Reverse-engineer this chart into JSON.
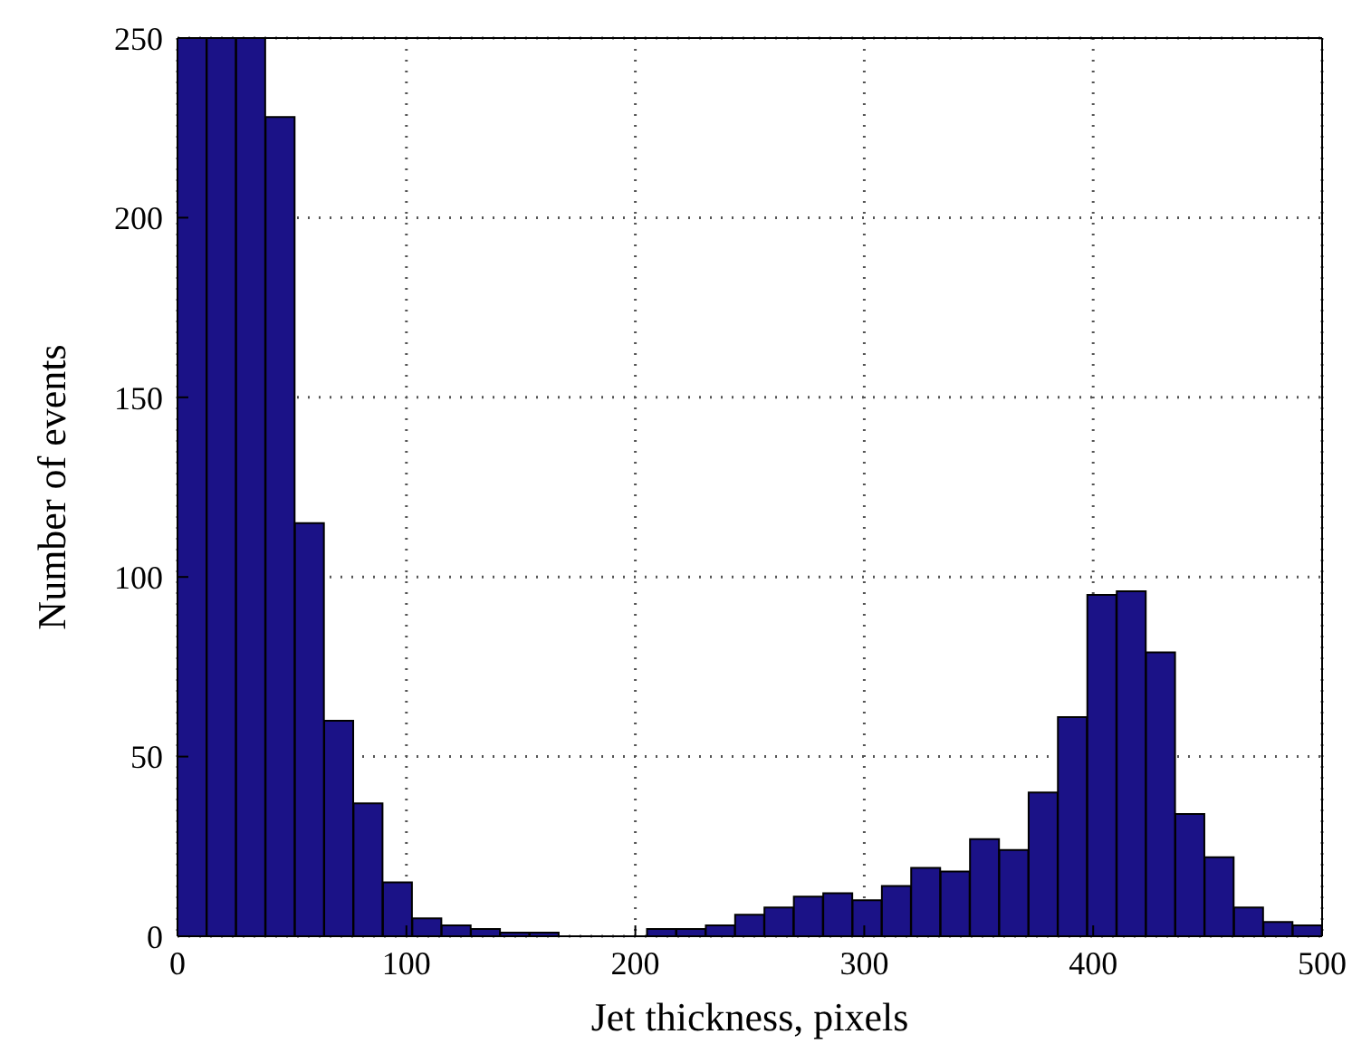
{
  "chart_data": {
    "type": "histogram",
    "xlabel": "Jet thickness, pixels",
    "ylabel": "Number of events",
    "color": "#1b1287",
    "bins": [
      0,
      12.8,
      25.6,
      38.5,
      51.3,
      64.1,
      76.9,
      89.7,
      102.6,
      115.4,
      128.2,
      141.0,
      153.8,
      166.7,
      179.5,
      192.3,
      205.1,
      217.9,
      230.8,
      243.6,
      256.4,
      269.2,
      282.1,
      294.9,
      307.7,
      320.5,
      333.3,
      346.2,
      359.0,
      371.8,
      384.6,
      397.4,
      410.3,
      423.1,
      435.9,
      448.7,
      461.5,
      474.4,
      487.2,
      500
    ],
    "values": [
      250,
      250,
      250,
      228,
      115,
      60,
      37,
      15,
      5,
      3,
      2,
      1,
      1,
      0,
      0,
      0,
      2,
      2,
      3,
      6,
      8,
      11,
      12,
      10,
      14,
      19,
      18,
      27,
      24,
      40,
      61,
      95,
      96,
      79,
      34,
      22,
      8,
      4,
      3
    ],
    "xlim": [
      0,
      500
    ],
    "xticks": [
      0,
      100,
      200,
      300,
      400,
      500
    ],
    "ylim": [
      0,
      250
    ],
    "yticks": [
      0,
      50,
      100,
      150,
      200,
      250
    ],
    "grid": true
  }
}
